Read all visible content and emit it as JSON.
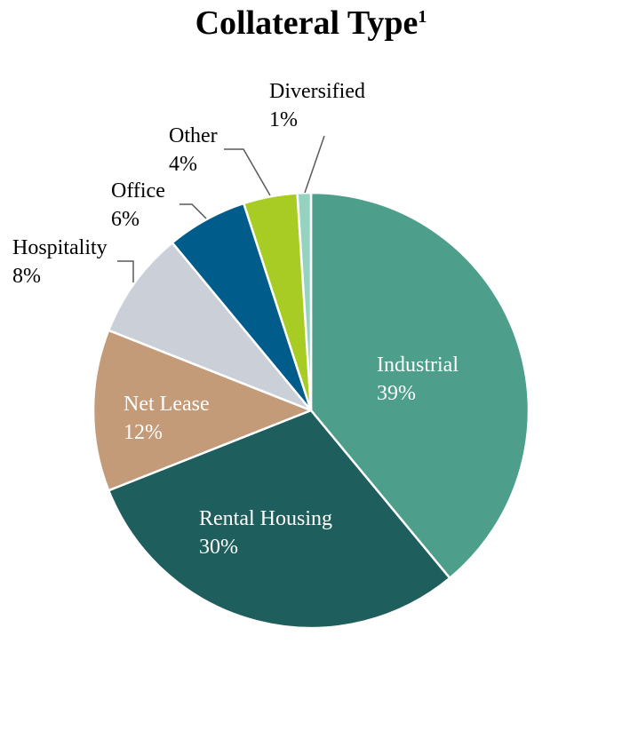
{
  "chart_data": {
    "type": "pie",
    "title": "Collateral Type",
    "title_superscript": "1",
    "slices": [
      {
        "label": "Industrial",
        "value": 39,
        "display": "39%",
        "color": "#4e9e8c",
        "label_color": "#ffffff",
        "placement": "inside"
      },
      {
        "label": "Rental Housing",
        "value": 30,
        "display": "30%",
        "color": "#1e5e5c",
        "label_color": "#ffffff",
        "placement": "inside"
      },
      {
        "label": "Net Lease",
        "value": 12,
        "display": "12%",
        "color": "#c49b78",
        "label_color": "#ffffff",
        "placement": "inside"
      },
      {
        "label": "Hospitality",
        "value": 8,
        "display": "8%",
        "color": "#cbd0d8",
        "label_color": "#000000",
        "placement": "outside"
      },
      {
        "label": "Office",
        "value": 6,
        "display": "6%",
        "color": "#005c8a",
        "label_color": "#000000",
        "placement": "outside"
      },
      {
        "label": "Other",
        "value": 4,
        "display": "4%",
        "color": "#a8cc24",
        "label_color": "#000000",
        "placement": "outside"
      },
      {
        "label": "Diversified",
        "value": 1,
        "display": "1%",
        "color": "#96d2c0",
        "label_color": "#000000",
        "placement": "outside"
      }
    ],
    "start": "12 o'clock",
    "direction": "clockwise"
  }
}
